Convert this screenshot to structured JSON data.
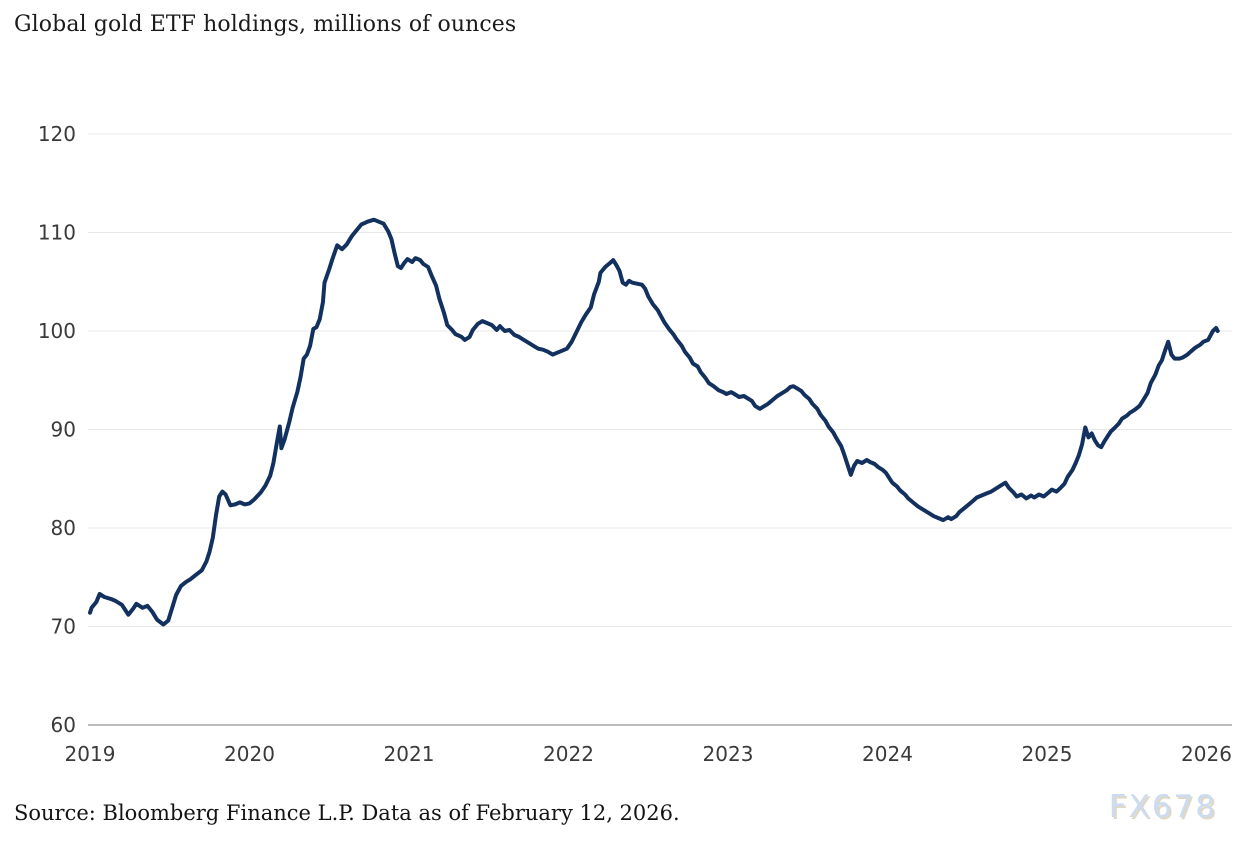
{
  "header": {
    "title": "Global gold ETF holdings, millions of ounces"
  },
  "footer": {
    "source": "Source: Bloomberg Finance L.P. Data as of February 12, 2026.",
    "watermark": "FX678"
  },
  "colors": {
    "line": "#12315e",
    "grid": "#e8e8e8",
    "axis": "#a5a5a5",
    "tick_label": "#3a3a3a",
    "background": "#ffffff"
  },
  "chart_data": {
    "type": "line",
    "title": "Global gold ETF holdings, millions of ounces",
    "xlabel": "",
    "ylabel": "millions of ounces",
    "series_name": "Global gold ETF holdings",
    "legend": "none",
    "grid": "horizontal-only",
    "x_ticks": [
      2019,
      2020,
      2021,
      2022,
      2023,
      2024,
      2025,
      2026
    ],
    "y_ticks": [
      60,
      70,
      80,
      90,
      100,
      110,
      120
    ],
    "xlim": [
      2019,
      2026.15
    ],
    "ylim": [
      60,
      122
    ],
    "points": [
      [
        2019.0,
        71.4
      ],
      [
        2019.01,
        71.9
      ],
      [
        2019.04,
        72.5
      ],
      [
        2019.06,
        73.3
      ],
      [
        2019.09,
        73.0
      ],
      [
        2019.13,
        72.8
      ],
      [
        2019.16,
        72.6
      ],
      [
        2019.2,
        72.2
      ],
      [
        2019.24,
        71.2
      ],
      [
        2019.27,
        71.8
      ],
      [
        2019.29,
        72.3
      ],
      [
        2019.33,
        71.9
      ],
      [
        2019.36,
        72.1
      ],
      [
        2019.39,
        71.5
      ],
      [
        2019.42,
        70.7
      ],
      [
        2019.46,
        70.2
      ],
      [
        2019.49,
        70.6
      ],
      [
        2019.51,
        71.6
      ],
      [
        2019.54,
        73.2
      ],
      [
        2019.57,
        74.1
      ],
      [
        2019.6,
        74.5
      ],
      [
        2019.63,
        74.8
      ],
      [
        2019.66,
        75.2
      ],
      [
        2019.7,
        75.7
      ],
      [
        2019.73,
        76.6
      ],
      [
        2019.75,
        77.6
      ],
      [
        2019.77,
        79.0
      ],
      [
        2019.79,
        81.3
      ],
      [
        2019.81,
        83.2
      ],
      [
        2019.83,
        83.7
      ],
      [
        2019.85,
        83.4
      ],
      [
        2019.88,
        82.3
      ],
      [
        2019.91,
        82.4
      ],
      [
        2019.94,
        82.6
      ],
      [
        2019.97,
        82.4
      ],
      [
        2020.0,
        82.5
      ],
      [
        2020.03,
        82.9
      ],
      [
        2020.07,
        83.6
      ],
      [
        2020.1,
        84.3
      ],
      [
        2020.13,
        85.3
      ],
      [
        2020.15,
        86.6
      ],
      [
        2020.17,
        88.5
      ],
      [
        2020.19,
        90.3
      ],
      [
        2020.2,
        88.1
      ],
      [
        2020.22,
        89.0
      ],
      [
        2020.25,
        90.8
      ],
      [
        2020.27,
        92.2
      ],
      [
        2020.3,
        93.8
      ],
      [
        2020.32,
        95.3
      ],
      [
        2020.34,
        97.2
      ],
      [
        2020.36,
        97.6
      ],
      [
        2020.38,
        98.5
      ],
      [
        2020.4,
        100.2
      ],
      [
        2020.42,
        100.4
      ],
      [
        2020.44,
        101.2
      ],
      [
        2020.46,
        102.9
      ],
      [
        2020.47,
        104.9
      ],
      [
        2020.5,
        106.3
      ],
      [
        2020.52,
        107.3
      ],
      [
        2020.55,
        108.7
      ],
      [
        2020.58,
        108.3
      ],
      [
        2020.61,
        108.8
      ],
      [
        2020.64,
        109.6
      ],
      [
        2020.67,
        110.2
      ],
      [
        2020.7,
        110.8
      ],
      [
        2020.74,
        111.1
      ],
      [
        2020.78,
        111.3
      ],
      [
        2020.81,
        111.1
      ],
      [
        2020.84,
        110.9
      ],
      [
        2020.87,
        110.1
      ],
      [
        2020.89,
        109.3
      ],
      [
        2020.91,
        107.9
      ],
      [
        2020.93,
        106.6
      ],
      [
        2020.95,
        106.4
      ],
      [
        2020.97,
        106.9
      ],
      [
        2020.99,
        107.3
      ],
      [
        2021.02,
        107.0
      ],
      [
        2021.04,
        107.4
      ],
      [
        2021.07,
        107.2
      ],
      [
        2021.09,
        106.8
      ],
      [
        2021.12,
        106.5
      ],
      [
        2021.14,
        105.7
      ],
      [
        2021.17,
        104.6
      ],
      [
        2021.19,
        103.3
      ],
      [
        2021.22,
        101.8
      ],
      [
        2021.24,
        100.6
      ],
      [
        2021.27,
        100.1
      ],
      [
        2021.29,
        99.7
      ],
      [
        2021.33,
        99.4
      ],
      [
        2021.35,
        99.1
      ],
      [
        2021.38,
        99.4
      ],
      [
        2021.4,
        100.1
      ],
      [
        2021.43,
        100.7
      ],
      [
        2021.46,
        101.0
      ],
      [
        2021.49,
        100.8
      ],
      [
        2021.52,
        100.6
      ],
      [
        2021.55,
        100.1
      ],
      [
        2021.57,
        100.5
      ],
      [
        2021.6,
        100.0
      ],
      [
        2021.63,
        100.1
      ],
      [
        2021.66,
        99.6
      ],
      [
        2021.69,
        99.4
      ],
      [
        2021.72,
        99.1
      ],
      [
        2021.75,
        98.8
      ],
      [
        2021.78,
        98.5
      ],
      [
        2021.81,
        98.2
      ],
      [
        2021.84,
        98.1
      ],
      [
        2021.87,
        97.9
      ],
      [
        2021.9,
        97.6
      ],
      [
        2021.93,
        97.8
      ],
      [
        2021.96,
        98.0
      ],
      [
        2021.99,
        98.2
      ],
      [
        2022.02,
        98.9
      ],
      [
        2022.05,
        99.9
      ],
      [
        2022.08,
        100.9
      ],
      [
        2022.11,
        101.7
      ],
      [
        2022.14,
        102.4
      ],
      [
        2022.16,
        103.7
      ],
      [
        2022.19,
        105.0
      ],
      [
        2022.2,
        105.9
      ],
      [
        2022.23,
        106.5
      ],
      [
        2022.26,
        106.9
      ],
      [
        2022.28,
        107.2
      ],
      [
        2022.3,
        106.7
      ],
      [
        2022.32,
        106.1
      ],
      [
        2022.34,
        104.9
      ],
      [
        2022.36,
        104.7
      ],
      [
        2022.38,
        105.1
      ],
      [
        2022.4,
        104.9
      ],
      [
        2022.43,
        104.8
      ],
      [
        2022.46,
        104.7
      ],
      [
        2022.48,
        104.3
      ],
      [
        2022.5,
        103.5
      ],
      [
        2022.53,
        102.7
      ],
      [
        2022.56,
        102.1
      ],
      [
        2022.58,
        101.5
      ],
      [
        2022.6,
        100.9
      ],
      [
        2022.63,
        100.2
      ],
      [
        2022.66,
        99.6
      ],
      [
        2022.68,
        99.1
      ],
      [
        2022.71,
        98.5
      ],
      [
        2022.73,
        97.9
      ],
      [
        2022.76,
        97.3
      ],
      [
        2022.78,
        96.7
      ],
      [
        2022.81,
        96.4
      ],
      [
        2022.83,
        95.8
      ],
      [
        2022.86,
        95.2
      ],
      [
        2022.88,
        94.7
      ],
      [
        2022.91,
        94.4
      ],
      [
        2022.94,
        94.0
      ],
      [
        2022.97,
        93.8
      ],
      [
        2022.99,
        93.6
      ],
      [
        2023.02,
        93.8
      ],
      [
        2023.04,
        93.6
      ],
      [
        2023.07,
        93.3
      ],
      [
        2023.1,
        93.4
      ],
      [
        2023.12,
        93.2
      ],
      [
        2023.15,
        92.9
      ],
      [
        2023.17,
        92.4
      ],
      [
        2023.2,
        92.1
      ],
      [
        2023.22,
        92.3
      ],
      [
        2023.25,
        92.6
      ],
      [
        2023.28,
        93.0
      ],
      [
        2023.31,
        93.4
      ],
      [
        2023.34,
        93.7
      ],
      [
        2023.37,
        94.0
      ],
      [
        2023.39,
        94.3
      ],
      [
        2023.41,
        94.4
      ],
      [
        2023.43,
        94.2
      ],
      [
        2023.46,
        93.9
      ],
      [
        2023.48,
        93.5
      ],
      [
        2023.51,
        93.1
      ],
      [
        2023.53,
        92.6
      ],
      [
        2023.56,
        92.1
      ],
      [
        2023.58,
        91.5
      ],
      [
        2023.61,
        90.9
      ],
      [
        2023.63,
        90.3
      ],
      [
        2023.66,
        89.7
      ],
      [
        2023.68,
        89.1
      ],
      [
        2023.71,
        88.3
      ],
      [
        2023.73,
        87.4
      ],
      [
        2023.75,
        86.4
      ],
      [
        2023.77,
        85.4
      ],
      [
        2023.79,
        86.3
      ],
      [
        2023.81,
        86.8
      ],
      [
        2023.84,
        86.6
      ],
      [
        2023.87,
        86.9
      ],
      [
        2023.89,
        86.7
      ],
      [
        2023.92,
        86.5
      ],
      [
        2023.94,
        86.2
      ],
      [
        2023.97,
        85.9
      ],
      [
        2023.99,
        85.6
      ],
      [
        2024.01,
        85.1
      ],
      [
        2024.03,
        84.6
      ],
      [
        2024.06,
        84.2
      ],
      [
        2024.08,
        83.8
      ],
      [
        2024.11,
        83.4
      ],
      [
        2024.13,
        83.0
      ],
      [
        2024.16,
        82.6
      ],
      [
        2024.19,
        82.2
      ],
      [
        2024.22,
        81.9
      ],
      [
        2024.26,
        81.5
      ],
      [
        2024.29,
        81.2
      ],
      [
        2024.32,
        81.0
      ],
      [
        2024.35,
        80.8
      ],
      [
        2024.38,
        81.1
      ],
      [
        2024.4,
        80.9
      ],
      [
        2024.43,
        81.2
      ],
      [
        2024.45,
        81.6
      ],
      [
        2024.48,
        82.0
      ],
      [
        2024.51,
        82.4
      ],
      [
        2024.54,
        82.8
      ],
      [
        2024.56,
        83.1
      ],
      [
        2024.59,
        83.3
      ],
      [
        2024.62,
        83.5
      ],
      [
        2024.65,
        83.7
      ],
      [
        2024.68,
        84.0
      ],
      [
        2024.71,
        84.3
      ],
      [
        2024.74,
        84.6
      ],
      [
        2024.76,
        84.1
      ],
      [
        2024.79,
        83.6
      ],
      [
        2024.81,
        83.2
      ],
      [
        2024.84,
        83.4
      ],
      [
        2024.87,
        83.0
      ],
      [
        2024.9,
        83.3
      ],
      [
        2024.92,
        83.1
      ],
      [
        2024.95,
        83.4
      ],
      [
        2024.98,
        83.2
      ],
      [
        2025.01,
        83.6
      ],
      [
        2025.03,
        83.9
      ],
      [
        2025.06,
        83.7
      ],
      [
        2025.08,
        84.0
      ],
      [
        2025.11,
        84.5
      ],
      [
        2025.13,
        85.2
      ],
      [
        2025.16,
        85.9
      ],
      [
        2025.18,
        86.6
      ],
      [
        2025.2,
        87.4
      ],
      [
        2025.22,
        88.5
      ],
      [
        2025.24,
        90.2
      ],
      [
        2025.26,
        89.2
      ],
      [
        2025.28,
        89.6
      ],
      [
        2025.3,
        88.9
      ],
      [
        2025.32,
        88.4
      ],
      [
        2025.34,
        88.2
      ],
      [
        2025.36,
        88.8
      ],
      [
        2025.38,
        89.3
      ],
      [
        2025.4,
        89.8
      ],
      [
        2025.42,
        90.1
      ],
      [
        2025.45,
        90.6
      ],
      [
        2025.47,
        91.1
      ],
      [
        2025.5,
        91.4
      ],
      [
        2025.52,
        91.7
      ],
      [
        2025.55,
        92.0
      ],
      [
        2025.58,
        92.4
      ],
      [
        2025.6,
        92.9
      ],
      [
        2025.63,
        93.7
      ],
      [
        2025.65,
        94.7
      ],
      [
        2025.68,
        95.6
      ],
      [
        2025.7,
        96.5
      ],
      [
        2025.72,
        97.0
      ],
      [
        2025.74,
        98.0
      ],
      [
        2025.76,
        98.9
      ],
      [
        2025.78,
        97.6
      ],
      [
        2025.8,
        97.2
      ],
      [
        2025.83,
        97.2
      ],
      [
        2025.85,
        97.3
      ],
      [
        2025.88,
        97.6
      ],
      [
        2025.9,
        97.9
      ],
      [
        2025.93,
        98.3
      ],
      [
        2025.96,
        98.6
      ],
      [
        2025.98,
        98.9
      ],
      [
        2026.01,
        99.1
      ],
      [
        2026.02,
        99.4
      ],
      [
        2026.04,
        100.0
      ],
      [
        2026.06,
        100.3
      ],
      [
        2026.07,
        100.0
      ]
    ]
  }
}
